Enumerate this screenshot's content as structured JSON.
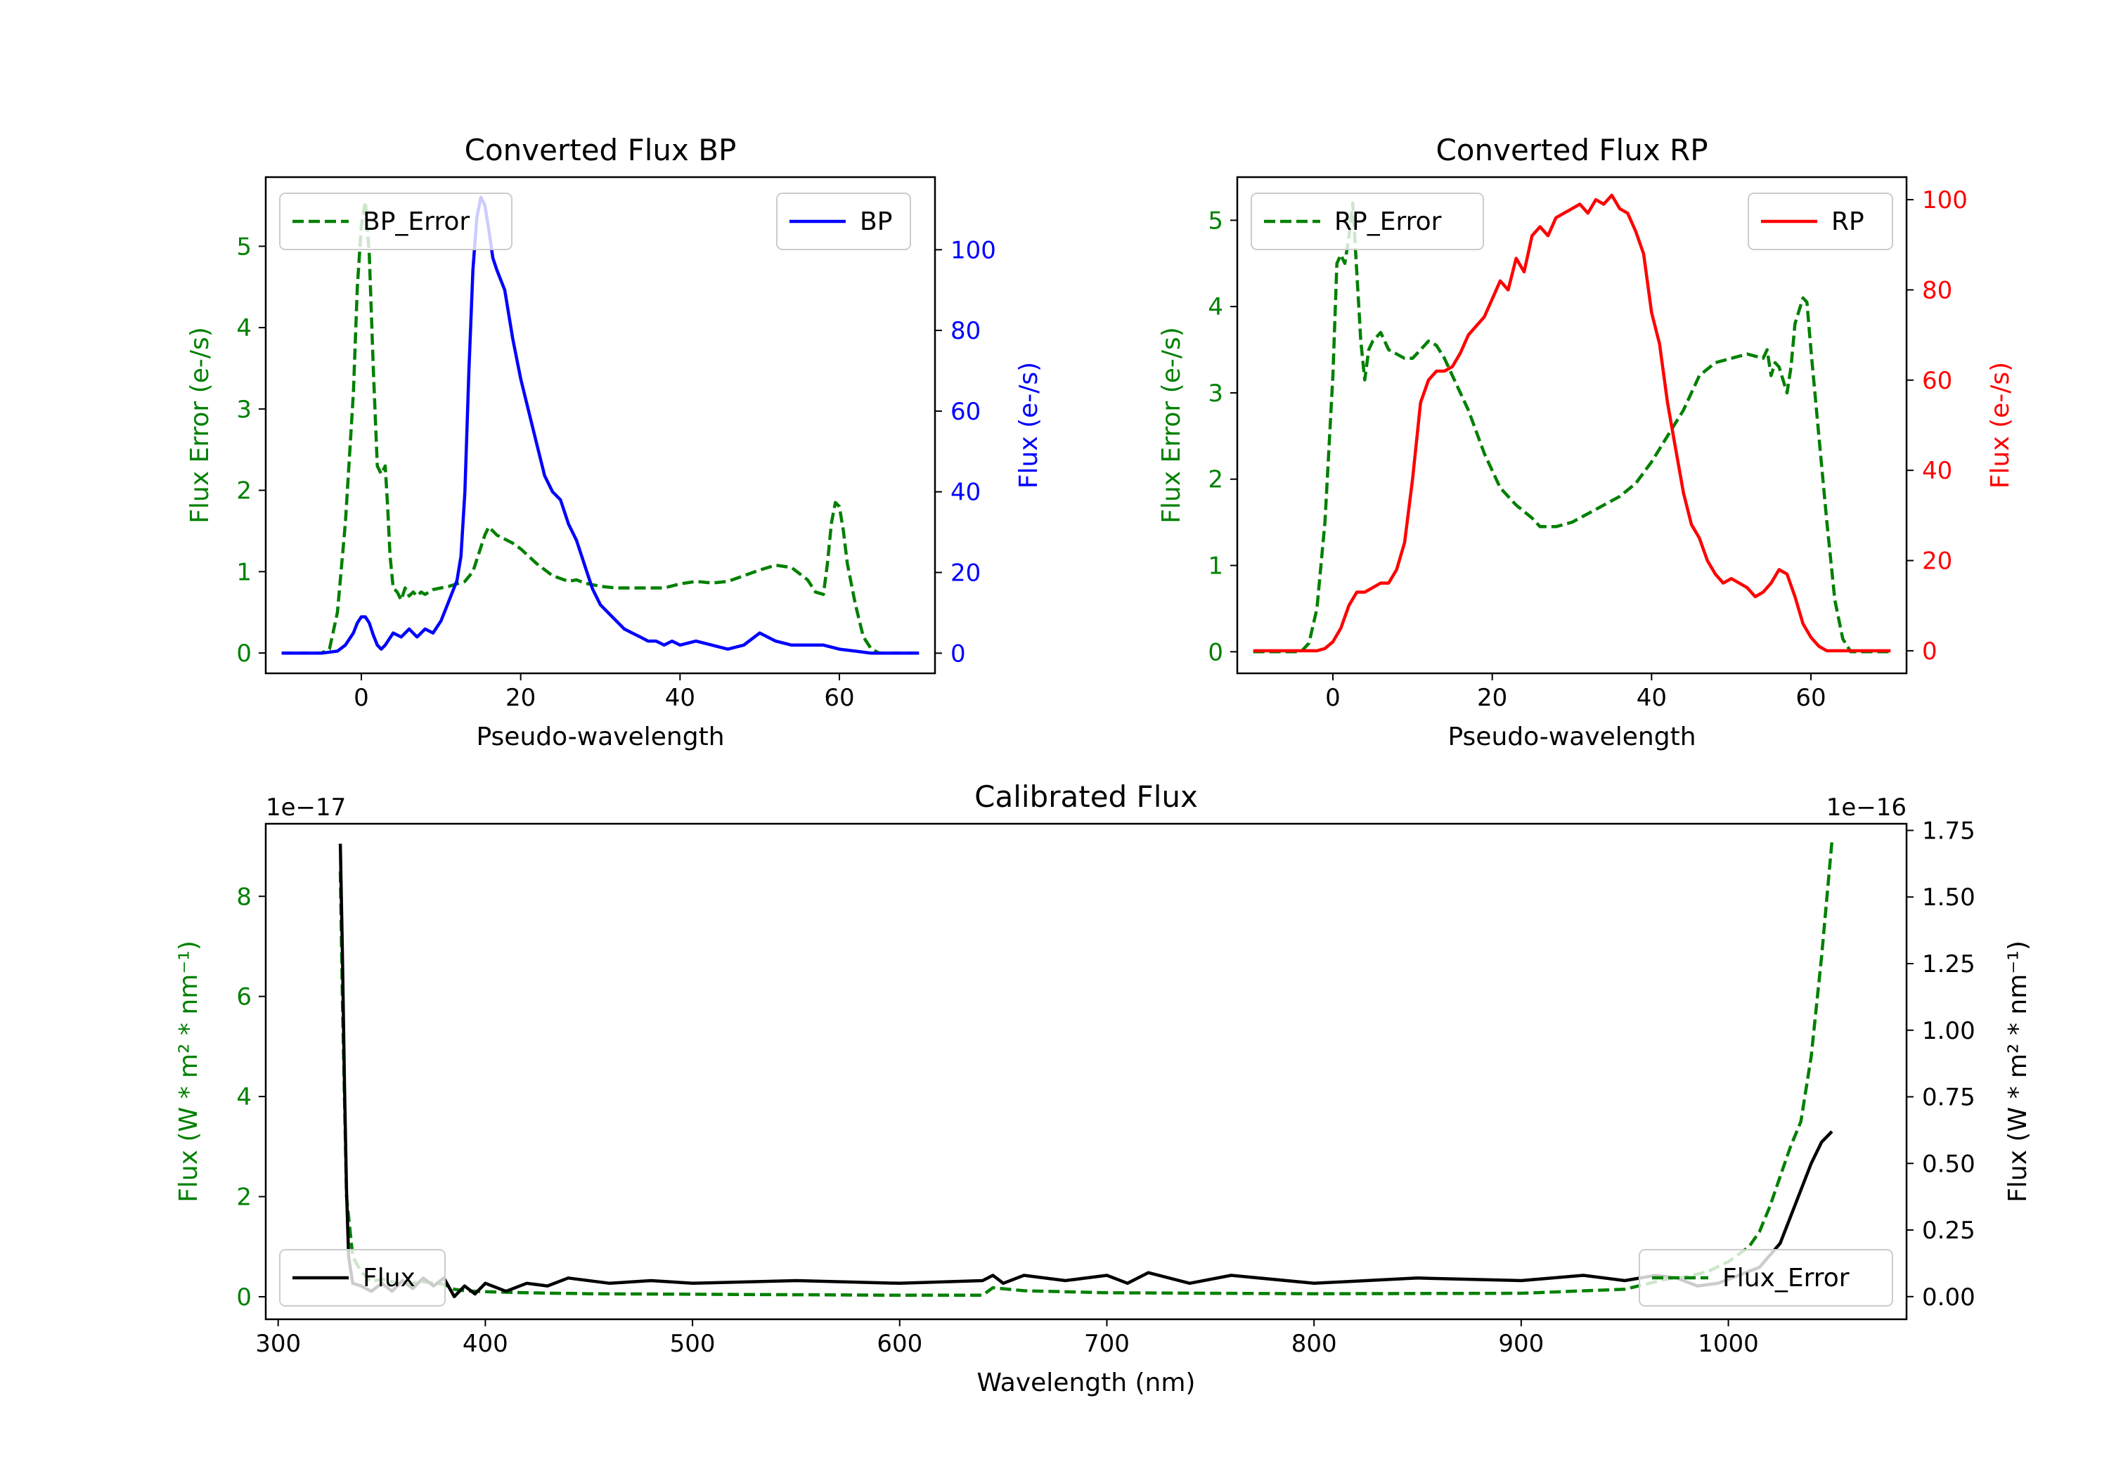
{
  "colors": {
    "error": "#008000",
    "bp": "#0000ff",
    "rp": "#ff0000",
    "flux": "#000000",
    "axis": "#000000",
    "legend_border": "#cccccc"
  },
  "chart_data": [
    {
      "id": "bp",
      "type": "line",
      "title": "Converted Flux BP",
      "xlabel": "Pseudo-wavelength",
      "ylabel_left": "Flux Error (e-/s)",
      "ylabel_right": "Flux (e-/s)",
      "xlim": [
        -12,
        72
      ],
      "ylim_left": [
        -0.25,
        5.85
      ],
      "ylim_right": [
        -5,
        118
      ],
      "xticks": [
        0,
        20,
        40,
        60
      ],
      "yticks_left": [
        0,
        1,
        2,
        3,
        4,
        5
      ],
      "yticks_right": [
        0,
        20,
        40,
        60,
        80,
        100
      ],
      "legend_left": {
        "label": "BP_Error",
        "placement": "upper-left"
      },
      "legend_right": {
        "label": "BP",
        "placement": "upper-right"
      },
      "series": [
        {
          "name": "BP_Error",
          "axis": "left",
          "style": "dashed",
          "color_key": "error",
          "x": [
            -10,
            -5,
            -4,
            -3,
            -2,
            -1,
            -0.5,
            0,
            0.5,
            1,
            1.5,
            2,
            2.5,
            3,
            3.3,
            3.6,
            4,
            4.5,
            5,
            5.5,
            6,
            6.5,
            7,
            7.5,
            8,
            9,
            10,
            11,
            12,
            13,
            14,
            15,
            15.5,
            16,
            17,
            18,
            19,
            20,
            22,
            24,
            26,
            27,
            28,
            30,
            32,
            34,
            36,
            38,
            40,
            42,
            44,
            46,
            48,
            50,
            52,
            54,
            56,
            57,
            58,
            58.5,
            59,
            59.5,
            60,
            60.5,
            61,
            62,
            63,
            64,
            65,
            66,
            70
          ],
          "values": [
            0,
            0,
            0.05,
            0.5,
            1.6,
            3.2,
            4.5,
            5.25,
            5.55,
            4.9,
            3.5,
            2.3,
            2.2,
            2.3,
            1.8,
            1.2,
            0.8,
            0.75,
            0.65,
            0.8,
            0.7,
            0.75,
            0.7,
            0.75,
            0.72,
            0.78,
            0.8,
            0.82,
            0.85,
            0.88,
            1.0,
            1.3,
            1.45,
            1.55,
            1.45,
            1.4,
            1.35,
            1.28,
            1.1,
            0.95,
            0.88,
            0.9,
            0.86,
            0.82,
            0.8,
            0.8,
            0.8,
            0.8,
            0.85,
            0.88,
            0.86,
            0.88,
            0.95,
            1.02,
            1.08,
            1.05,
            0.9,
            0.75,
            0.72,
            1.1,
            1.6,
            1.85,
            1.8,
            1.5,
            1.1,
            0.6,
            0.2,
            0.05,
            0,
            0,
            0
          ]
        },
        {
          "name": "BP",
          "axis": "right",
          "style": "solid",
          "color_key": "bp",
          "x": [
            -10,
            -5,
            -3,
            -2,
            -1,
            -0.5,
            0,
            0.5,
            1,
            1.5,
            2,
            2.5,
            3,
            4,
            5,
            6,
            7,
            8,
            9,
            10,
            11,
            12,
            12.5,
            13,
            13.5,
            14,
            14.5,
            15,
            15.5,
            16,
            16.5,
            17,
            18,
            19,
            20,
            21,
            22,
            23,
            24,
            25,
            26,
            27,
            28,
            29,
            30,
            31,
            32,
            33,
            34,
            35,
            36,
            37,
            38,
            39,
            40,
            42,
            44,
            46,
            48,
            50,
            52,
            54,
            56,
            58,
            60,
            62,
            64,
            66,
            70
          ],
          "values": [
            0,
            0,
            0.5,
            2,
            5,
            7.5,
            9,
            9,
            7.5,
            4.5,
            2,
            1,
            2,
            5,
            4,
            6,
            4,
            6,
            5,
            8,
            13,
            18,
            24,
            40,
            70,
            95,
            108,
            113,
            111,
            105,
            98,
            95,
            90,
            78,
            68,
            60,
            52,
            44,
            40,
            38,
            32,
            28,
            22,
            16,
            12,
            10,
            8,
            6,
            5,
            4,
            3,
            3,
            2,
            3,
            2,
            3,
            2,
            1,
            2,
            5,
            3,
            2,
            2,
            2,
            1,
            0.5,
            0,
            0,
            0
          ]
        }
      ]
    },
    {
      "id": "rp",
      "type": "line",
      "title": "Converted Flux RP",
      "xlabel": "Pseudo-wavelength",
      "ylabel_left": "Flux Error (e-/s)",
      "ylabel_right": "Flux (e-/s)",
      "xlim": [
        -12,
        72
      ],
      "ylim_left": [
        -0.25,
        5.5
      ],
      "ylim_right": [
        -5,
        105
      ],
      "xticks": [
        0,
        20,
        40,
        60
      ],
      "yticks_left": [
        0,
        1,
        2,
        3,
        4,
        5
      ],
      "yticks_right": [
        0,
        20,
        40,
        60,
        80,
        100
      ],
      "legend_left": {
        "label": "RP_Error",
        "placement": "upper-left"
      },
      "legend_right": {
        "label": "RP",
        "placement": "upper-right"
      },
      "series": [
        {
          "name": "RP_Error",
          "axis": "left",
          "style": "dashed",
          "color_key": "error",
          "x": [
            -10,
            -4,
            -3,
            -2,
            -1,
            0,
            0.5,
            1,
            1.5,
            2,
            2.5,
            3,
            3.5,
            4,
            4.5,
            5,
            6,
            7,
            8,
            9,
            10,
            11,
            12,
            13,
            14,
            15,
            17,
            19,
            21,
            23,
            25,
            26,
            28,
            30,
            32,
            34,
            36,
            38,
            40,
            42,
            44,
            46,
            48,
            50,
            52,
            54,
            54.5,
            55,
            55.5,
            56,
            57,
            57.5,
            58,
            59,
            59.5,
            60,
            61,
            62,
            63,
            64,
            65,
            70
          ],
          "values": [
            0,
            0,
            0.1,
            0.5,
            1.5,
            3.2,
            4.5,
            4.6,
            4.5,
            4.8,
            5.2,
            4.4,
            3.6,
            3.15,
            3.5,
            3.6,
            3.7,
            3.5,
            3.45,
            3.4,
            3.4,
            3.5,
            3.6,
            3.55,
            3.4,
            3.2,
            2.8,
            2.3,
            1.9,
            1.7,
            1.55,
            1.45,
            1.45,
            1.5,
            1.6,
            1.7,
            1.8,
            1.95,
            2.2,
            2.5,
            2.8,
            3.2,
            3.35,
            3.4,
            3.45,
            3.4,
            3.5,
            3.2,
            3.35,
            3.3,
            3.0,
            3.3,
            3.8,
            4.1,
            4.05,
            3.5,
            2.5,
            1.5,
            0.6,
            0.15,
            0,
            0
          ]
        },
        {
          "name": "RP",
          "axis": "right",
          "style": "solid",
          "color_key": "rp",
          "x": [
            -10,
            -2,
            -1,
            0,
            1,
            2,
            3,
            4,
            5,
            6,
            7,
            8,
            9,
            10,
            11,
            12,
            13,
            14,
            15,
            16,
            17,
            18,
            19,
            20,
            21,
            22,
            23,
            24,
            25,
            26,
            27,
            28,
            29,
            30,
            31,
            32,
            33,
            34,
            35,
            36,
            37,
            38,
            39,
            40,
            41,
            42,
            43,
            44,
            45,
            46,
            47,
            48,
            49,
            50,
            51,
            52,
            53,
            54,
            55,
            56,
            57,
            58,
            59,
            60,
            61,
            62,
            63,
            64,
            70
          ],
          "values": [
            0,
            0,
            0.5,
            2,
            5,
            10,
            13,
            13,
            14,
            15,
            15,
            18,
            24,
            38,
            55,
            60,
            62,
            62,
            63,
            66,
            70,
            72,
            74,
            78,
            82,
            80,
            87,
            84,
            92,
            94,
            92,
            96,
            97,
            98,
            99,
            97,
            100,
            99,
            101,
            98,
            97,
            93,
            88,
            75,
            68,
            55,
            45,
            35,
            28,
            25,
            20,
            17,
            15,
            16,
            15,
            14,
            12,
            13,
            15,
            18,
            17,
            12,
            6,
            3,
            1,
            0,
            0,
            0,
            0
          ]
        }
      ]
    },
    {
      "id": "calibrated",
      "type": "line",
      "title": "Calibrated Flux",
      "xlabel": "Wavelength (nm)",
      "ylabel_left": "Flux (W * m² * nm⁻¹)",
      "ylabel_right": "Flux (W * m² * nm⁻¹)",
      "offset_left": "1e−17",
      "offset_right": "1e−16",
      "xlim": [
        294,
        1086
      ],
      "ylim_left": [
        -0.45,
        9.45
      ],
      "ylim_right": [
        -0.085,
        1.775
      ],
      "xticks": [
        300,
        400,
        500,
        600,
        700,
        800,
        900,
        1000
      ],
      "yticks_left": [
        0,
        2,
        4,
        6,
        8
      ],
      "yticks_right": [
        "0.00",
        "0.25",
        "0.50",
        "0.75",
        "1.00",
        "1.25",
        "1.50",
        "1.75"
      ],
      "legend_left": {
        "label": "Flux",
        "placement": "lower-left"
      },
      "legend_right": {
        "label": "Flux_Error",
        "placement": "lower-right"
      },
      "series": [
        {
          "name": "Flux_Error",
          "axis": "left",
          "style": "dashed",
          "color_key": "error",
          "x": [
            330,
            331,
            333,
            336,
            340,
            345,
            350,
            360,
            370,
            380,
            385,
            390,
            400,
            420,
            450,
            500,
            550,
            600,
            640,
            645,
            660,
            700,
            800,
            900,
            950,
            970,
            980,
            990,
            1000,
            1010,
            1015,
            1020,
            1025,
            1030,
            1035,
            1040,
            1045,
            1050
          ],
          "values": [
            8.5,
            6,
            2,
            0.8,
            0.5,
            0.3,
            0.35,
            0.25,
            0.3,
            0.25,
            0.15,
            0.12,
            0.1,
            0.08,
            0.06,
            0.05,
            0.04,
            0.03,
            0.03,
            0.18,
            0.12,
            0.08,
            0.06,
            0.07,
            0.15,
            0.35,
            0.4,
            0.5,
            0.7,
            1.0,
            1.3,
            1.8,
            2.4,
            3.0,
            3.5,
            4.8,
            6.8,
            9.1
          ]
        },
        {
          "name": "Flux",
          "axis": "right",
          "style": "solid",
          "color_key": "flux",
          "x": [
            330,
            331,
            332,
            333,
            334,
            336,
            340,
            345,
            350,
            355,
            360,
            365,
            370,
            375,
            380,
            385,
            390,
            395,
            400,
            410,
            420,
            430,
            440,
            460,
            480,
            500,
            550,
            600,
            640,
            645,
            650,
            660,
            680,
            700,
            710,
            720,
            740,
            760,
            800,
            850,
            900,
            930,
            950,
            965,
            975,
            985,
            995,
            1005,
            1015,
            1025,
            1030,
            1035,
            1040,
            1045,
            1050
          ],
          "values": [
            1.7,
            1.3,
            0.8,
            0.4,
            0.15,
            0.05,
            0.04,
            0.02,
            0.05,
            0.02,
            0.06,
            0.03,
            0.07,
            0.04,
            0.07,
            0.0,
            0.04,
            0.01,
            0.05,
            0.02,
            0.05,
            0.04,
            0.07,
            0.05,
            0.06,
            0.05,
            0.06,
            0.05,
            0.06,
            0.08,
            0.05,
            0.08,
            0.06,
            0.08,
            0.05,
            0.09,
            0.05,
            0.08,
            0.05,
            0.07,
            0.06,
            0.08,
            0.06,
            0.08,
            0.07,
            0.04,
            0.05,
            0.08,
            0.11,
            0.2,
            0.3,
            0.4,
            0.5,
            0.58,
            0.62
          ]
        }
      ]
    }
  ]
}
